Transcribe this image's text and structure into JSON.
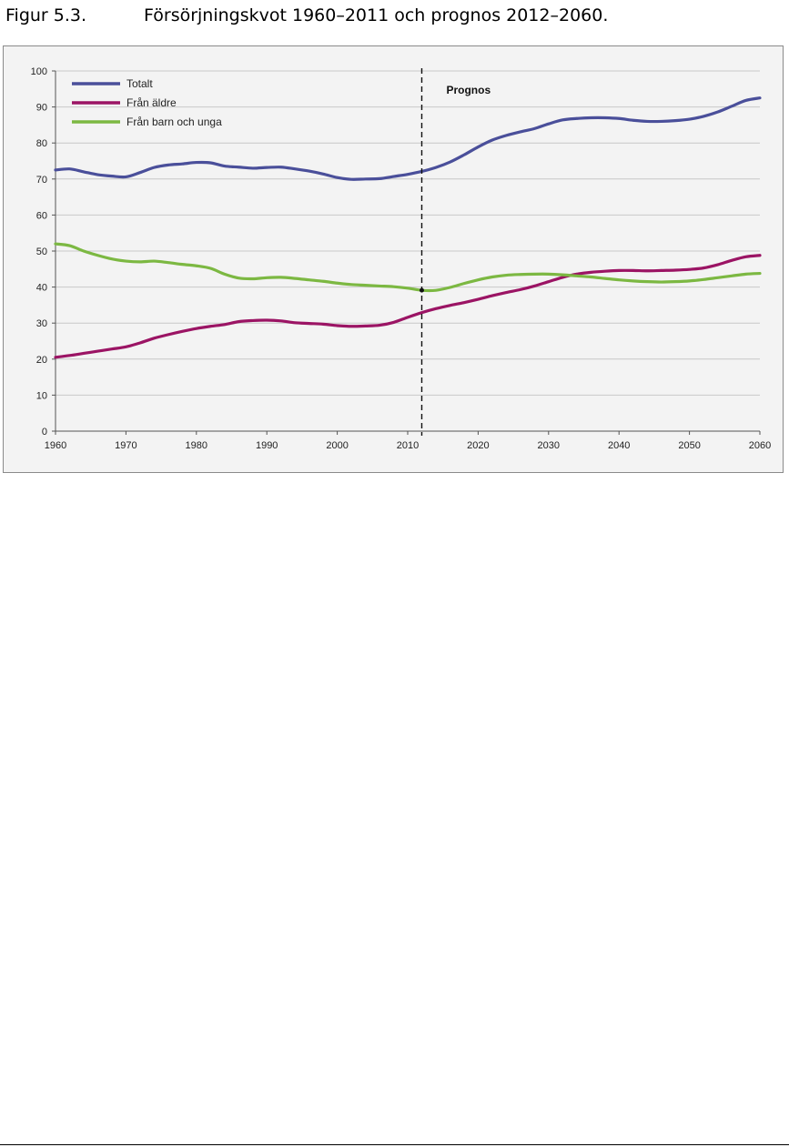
{
  "caption": {
    "number": "Figur 5.3.",
    "title": "Försörjningskvot 1960–2011 och prognos 2012–2060."
  },
  "chart_data": {
    "type": "line",
    "title": "",
    "xlabel": "",
    "ylabel": "",
    "xlim": [
      1960,
      2060
    ],
    "ylim": [
      0,
      100
    ],
    "x_ticks": [
      1960,
      1970,
      1980,
      1990,
      2000,
      2010,
      2020,
      2030,
      2040,
      2050,
      2060
    ],
    "y_ticks": [
      0,
      10,
      20,
      30,
      40,
      50,
      60,
      70,
      80,
      90,
      100
    ],
    "grid": "horizontal",
    "legend_position": "top-left",
    "annotations": [
      {
        "type": "vertical-dashed-line",
        "x": 2012,
        "label": "Prognos"
      }
    ],
    "series": [
      {
        "name": "Totalt",
        "color": "#4a4f9a",
        "x": [
          1960,
          1962,
          1964,
          1966,
          1968,
          1970,
          1972,
          1974,
          1976,
          1978,
          1980,
          1982,
          1984,
          1986,
          1988,
          1990,
          1992,
          1994,
          1996,
          1998,
          2000,
          2002,
          2004,
          2006,
          2008,
          2010,
          2012,
          2014,
          2016,
          2018,
          2020,
          2022,
          2024,
          2026,
          2028,
          2030,
          2032,
          2034,
          2036,
          2038,
          2040,
          2042,
          2044,
          2046,
          2048,
          2050,
          2052,
          2054,
          2056,
          2058,
          2060
        ],
        "values": [
          72.5,
          72.8,
          72.0,
          71.2,
          70.8,
          70.6,
          71.8,
          73.2,
          73.9,
          74.2,
          74.6,
          74.5,
          73.6,
          73.3,
          73.0,
          73.2,
          73.3,
          72.8,
          72.2,
          71.4,
          70.4,
          69.9,
          70.0,
          70.1,
          70.7,
          71.3,
          72.1,
          73.2,
          74.7,
          76.7,
          78.9,
          80.8,
          82.1,
          83.1,
          84.0,
          85.3,
          86.4,
          86.8,
          87.0,
          87.0,
          86.8,
          86.3,
          86.0,
          86.0,
          86.2,
          86.6,
          87.4,
          88.6,
          90.2,
          91.8,
          92.5
        ]
      },
      {
        "name": "Från äldre",
        "color": "#9b1464",
        "x": [
          1960,
          1962,
          1964,
          1966,
          1968,
          1970,
          1972,
          1974,
          1976,
          1978,
          1980,
          1982,
          1984,
          1986,
          1988,
          1990,
          1992,
          1994,
          1996,
          1998,
          2000,
          2002,
          2004,
          2006,
          2008,
          2010,
          2012,
          2014,
          2016,
          2018,
          2020,
          2022,
          2024,
          2026,
          2028,
          2030,
          2032,
          2034,
          2036,
          2038,
          2040,
          2042,
          2044,
          2046,
          2048,
          2050,
          2052,
          2054,
          2056,
          2058,
          2060
        ],
        "values": [
          20.5,
          21.0,
          21.6,
          22.2,
          22.8,
          23.4,
          24.5,
          25.8,
          26.8,
          27.7,
          28.5,
          29.1,
          29.6,
          30.4,
          30.7,
          30.8,
          30.6,
          30.1,
          29.9,
          29.7,
          29.3,
          29.1,
          29.2,
          29.4,
          30.2,
          31.6,
          32.9,
          34.0,
          34.9,
          35.7,
          36.6,
          37.6,
          38.5,
          39.3,
          40.3,
          41.5,
          42.7,
          43.6,
          44.1,
          44.4,
          44.6,
          44.6,
          44.5,
          44.6,
          44.7,
          44.9,
          45.3,
          46.2,
          47.4,
          48.4,
          48.8
        ]
      },
      {
        "name": "Från barn och unga",
        "color": "#7cb842",
        "x": [
          1960,
          1962,
          1964,
          1966,
          1968,
          1970,
          1972,
          1974,
          1976,
          1978,
          1980,
          1982,
          1984,
          1986,
          1988,
          1990,
          1992,
          1994,
          1996,
          1998,
          2000,
          2002,
          2004,
          2006,
          2008,
          2010,
          2012,
          2014,
          2016,
          2018,
          2020,
          2022,
          2024,
          2026,
          2028,
          2030,
          2032,
          2034,
          2036,
          2038,
          2040,
          2042,
          2044,
          2046,
          2048,
          2050,
          2052,
          2054,
          2056,
          2058,
          2060
        ],
        "values": [
          52.0,
          51.5,
          50.0,
          48.8,
          47.8,
          47.2,
          47.0,
          47.2,
          46.8,
          46.3,
          45.9,
          45.2,
          43.6,
          42.5,
          42.3,
          42.6,
          42.7,
          42.4,
          42.0,
          41.6,
          41.1,
          40.7,
          40.5,
          40.3,
          40.1,
          39.7,
          39.1,
          39.1,
          39.9,
          41.0,
          42.0,
          42.8,
          43.3,
          43.5,
          43.6,
          43.6,
          43.4,
          43.1,
          42.8,
          42.4,
          42.0,
          41.7,
          41.5,
          41.4,
          41.5,
          41.7,
          42.1,
          42.6,
          43.1,
          43.6,
          43.8
        ]
      }
    ]
  }
}
